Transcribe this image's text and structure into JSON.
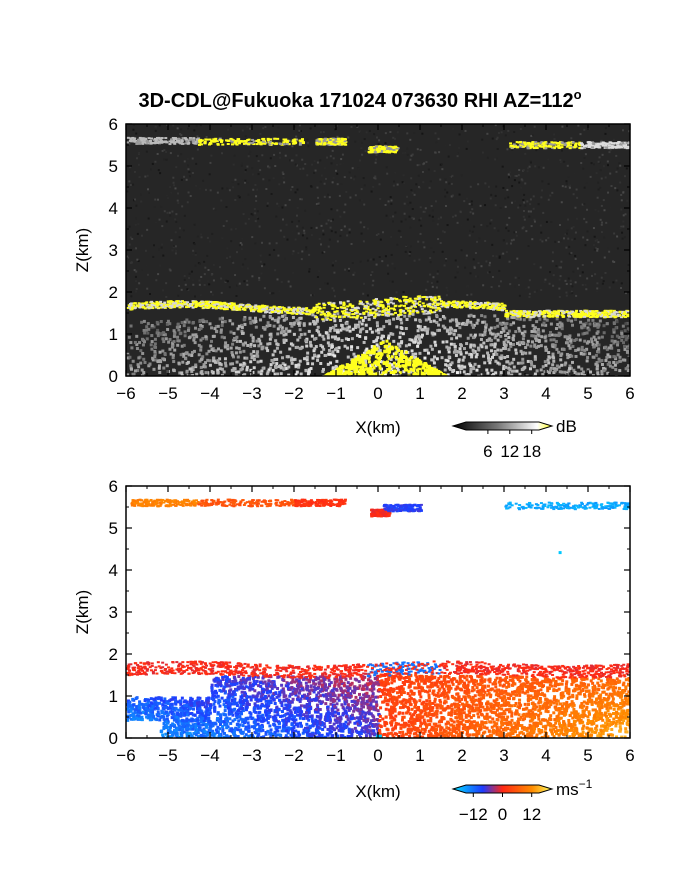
{
  "title": "3D-CDL@Fukuoka 171024 073630 RHI AZ=112",
  "title_sup": "o",
  "chart_data": [
    {
      "type": "heatmap",
      "variable": "backscatter intensity",
      "xlabel": "X(km)",
      "ylabel": "Z(km)",
      "xlim": [
        -6,
        6
      ],
      "ylim": [
        0,
        6
      ],
      "xticks": [
        "-6",
        "-5",
        "-4",
        "-3",
        "-2",
        "-1",
        "0",
        "1",
        "2",
        "3",
        "4",
        "5",
        "6"
      ],
      "yticks": [
        "0",
        "1",
        "2",
        "3",
        "4",
        "5",
        "6"
      ],
      "colorbar": {
        "unit": "dB",
        "ticks": [
          "6",
          "12",
          "18"
        ],
        "range": [
          0,
          20
        ]
      },
      "colors": {
        "background": "#262626",
        "saturated": "#ffff1e"
      },
      "features": [
        {
          "name": "upper cloud layer",
          "z_km": [
            5.4,
            5.75
          ],
          "x_km": [
            [
              -6,
              -0.8
            ],
            [
              -0.4,
              0.5
            ],
            [
              3,
              6
            ]
          ]
        },
        {
          "name": "boundary layer top",
          "z_km": [
            1.45,
            1.9
          ],
          "x_km": [
            -6,
            6
          ]
        },
        {
          "name": "near-lidar core",
          "z_km": [
            0,
            0.9
          ],
          "x_km": [
            -1.3,
            1.6
          ]
        }
      ]
    },
    {
      "type": "heatmap",
      "variable": "Doppler velocity",
      "xlabel": "X(km)",
      "ylabel": "Z(km)",
      "xlim": [
        -6,
        6
      ],
      "ylim": [
        0,
        6
      ],
      "xticks": [
        "-6",
        "-5",
        "-4",
        "-3",
        "-2",
        "-1",
        "0",
        "1",
        "2",
        "3",
        "4",
        "5",
        "6"
      ],
      "yticks": [
        "0",
        "1",
        "2",
        "3",
        "4",
        "5",
        "6"
      ],
      "colorbar": {
        "unit": "ms",
        "unit_sup": "−1",
        "ticks": [
          "−12",
          "0",
          "12"
        ],
        "range": [
          -15,
          15
        ]
      },
      "colors": {
        "negative": "#1e5aff",
        "zero": "#ff3c1e",
        "positive": "#ffb400",
        "strong_negative": "#00c8ff"
      },
      "features": [
        {
          "name": "upper layer west",
          "z_km": [
            5.5,
            5.75
          ],
          "x_km": [
            -5.9,
            -0.8
          ],
          "velocity_ms": [
            8,
            1
          ]
        },
        {
          "name": "upper layer center",
          "z_km": [
            5.35,
            5.6
          ],
          "x_km": [
            -0.2,
            1.0
          ],
          "velocity_ms": -6
        },
        {
          "name": "upper layer east",
          "z_km": [
            5.45,
            5.7
          ],
          "x_km": [
            3.0,
            6.0
          ],
          "velocity_ms": -12
        },
        {
          "name": "boundary layer west",
          "z_km": [
            0,
            1.5
          ],
          "x_km": [
            -6,
            0
          ],
          "velocity_ms": -7
        },
        {
          "name": "boundary layer east",
          "z_km": [
            0,
            1.55
          ],
          "x_km": [
            0,
            6
          ],
          "velocity_ms": 4
        },
        {
          "name": "boundary layer top",
          "z_km": [
            1.4,
            1.85
          ],
          "x_km": [
            -6,
            6
          ],
          "velocity_ms": 0
        }
      ]
    }
  ]
}
